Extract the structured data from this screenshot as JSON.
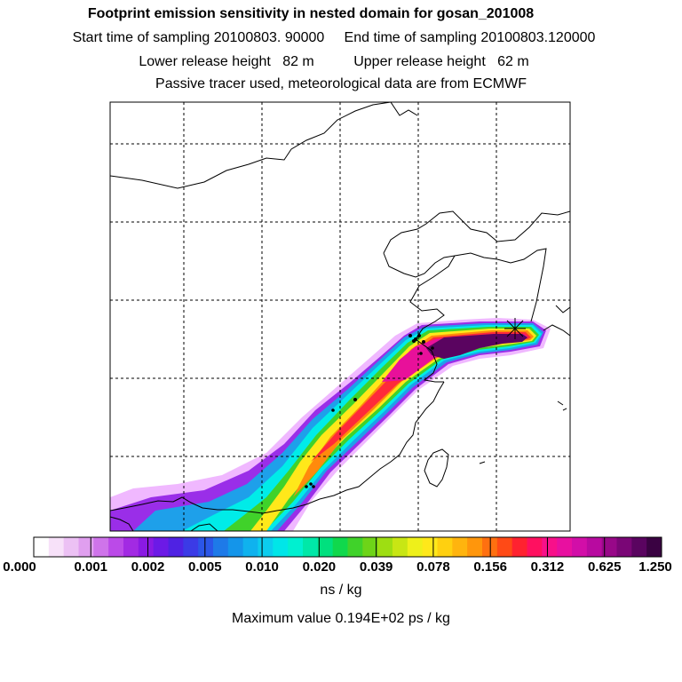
{
  "header": {
    "title": "Footprint emission sensitivity in nested domain for gosan_201008",
    "start_label": "Start time of sampling 20100803. 90000",
    "end_label": "End time of sampling 20100803.120000",
    "lower_label": "Lower release height   82 m",
    "upper_label": "Upper release height   62 m",
    "tracer_note": "Passive tracer used, meteorological data are from ECMWF"
  },
  "colorbar": {
    "tick_labels": [
      "0.000",
      "0.001",
      "0.002",
      "0.005",
      "0.010",
      "0.020",
      "0.039",
      "0.078",
      "0.156",
      "0.312",
      "0.625",
      "1.250"
    ],
    "colors": [
      "#ffffff",
      "#f7e1f9",
      "#ecc1f4",
      "#e09fef",
      "#cf74ea",
      "#bb4ae8",
      "#a22ae3",
      "#8a1ae3",
      "#6c1ae6",
      "#4f22e3",
      "#3b3be6",
      "#2b56e8",
      "#1e7ae8",
      "#1495ea",
      "#0fb2ee",
      "#0ccdee",
      "#00e6e8",
      "#00f0d0",
      "#00e8a8",
      "#00e07e",
      "#10d84c",
      "#40d22a",
      "#6ed418",
      "#9ede12",
      "#c8e614",
      "#eef01a",
      "#ffe81a",
      "#ffd010",
      "#ffb40e",
      "#ff960c",
      "#ff7010",
      "#ff4a16",
      "#ff2230",
      "#ff1060",
      "#f8108a",
      "#e810a0",
      "#d20ea8",
      "#b80aa0",
      "#980888",
      "#7a0676",
      "#5a0460",
      "#3a0242"
    ],
    "units": "ns / kg",
    "max_value_text": "Maximum value  0.194E+02 ps / kg"
  },
  "colors": {
    "plume_low": "#f0b8ff",
    "plume_violet": "#9a2ee8",
    "plume_blue": "#1ea0ea",
    "plume_cyan": "#00ece8",
    "plume_green": "#40d22a",
    "plume_yellow": "#ffe81a",
    "plume_orange": "#ff8a0c",
    "plume_red": "#ff2a3a",
    "plume_magenta": "#e8109a",
    "plume_dark": "#5a0460",
    "coast": "#000000",
    "grid": "#000000"
  },
  "map": {
    "station_marker": "receptor-star-icon",
    "grid_style": "dashed"
  }
}
